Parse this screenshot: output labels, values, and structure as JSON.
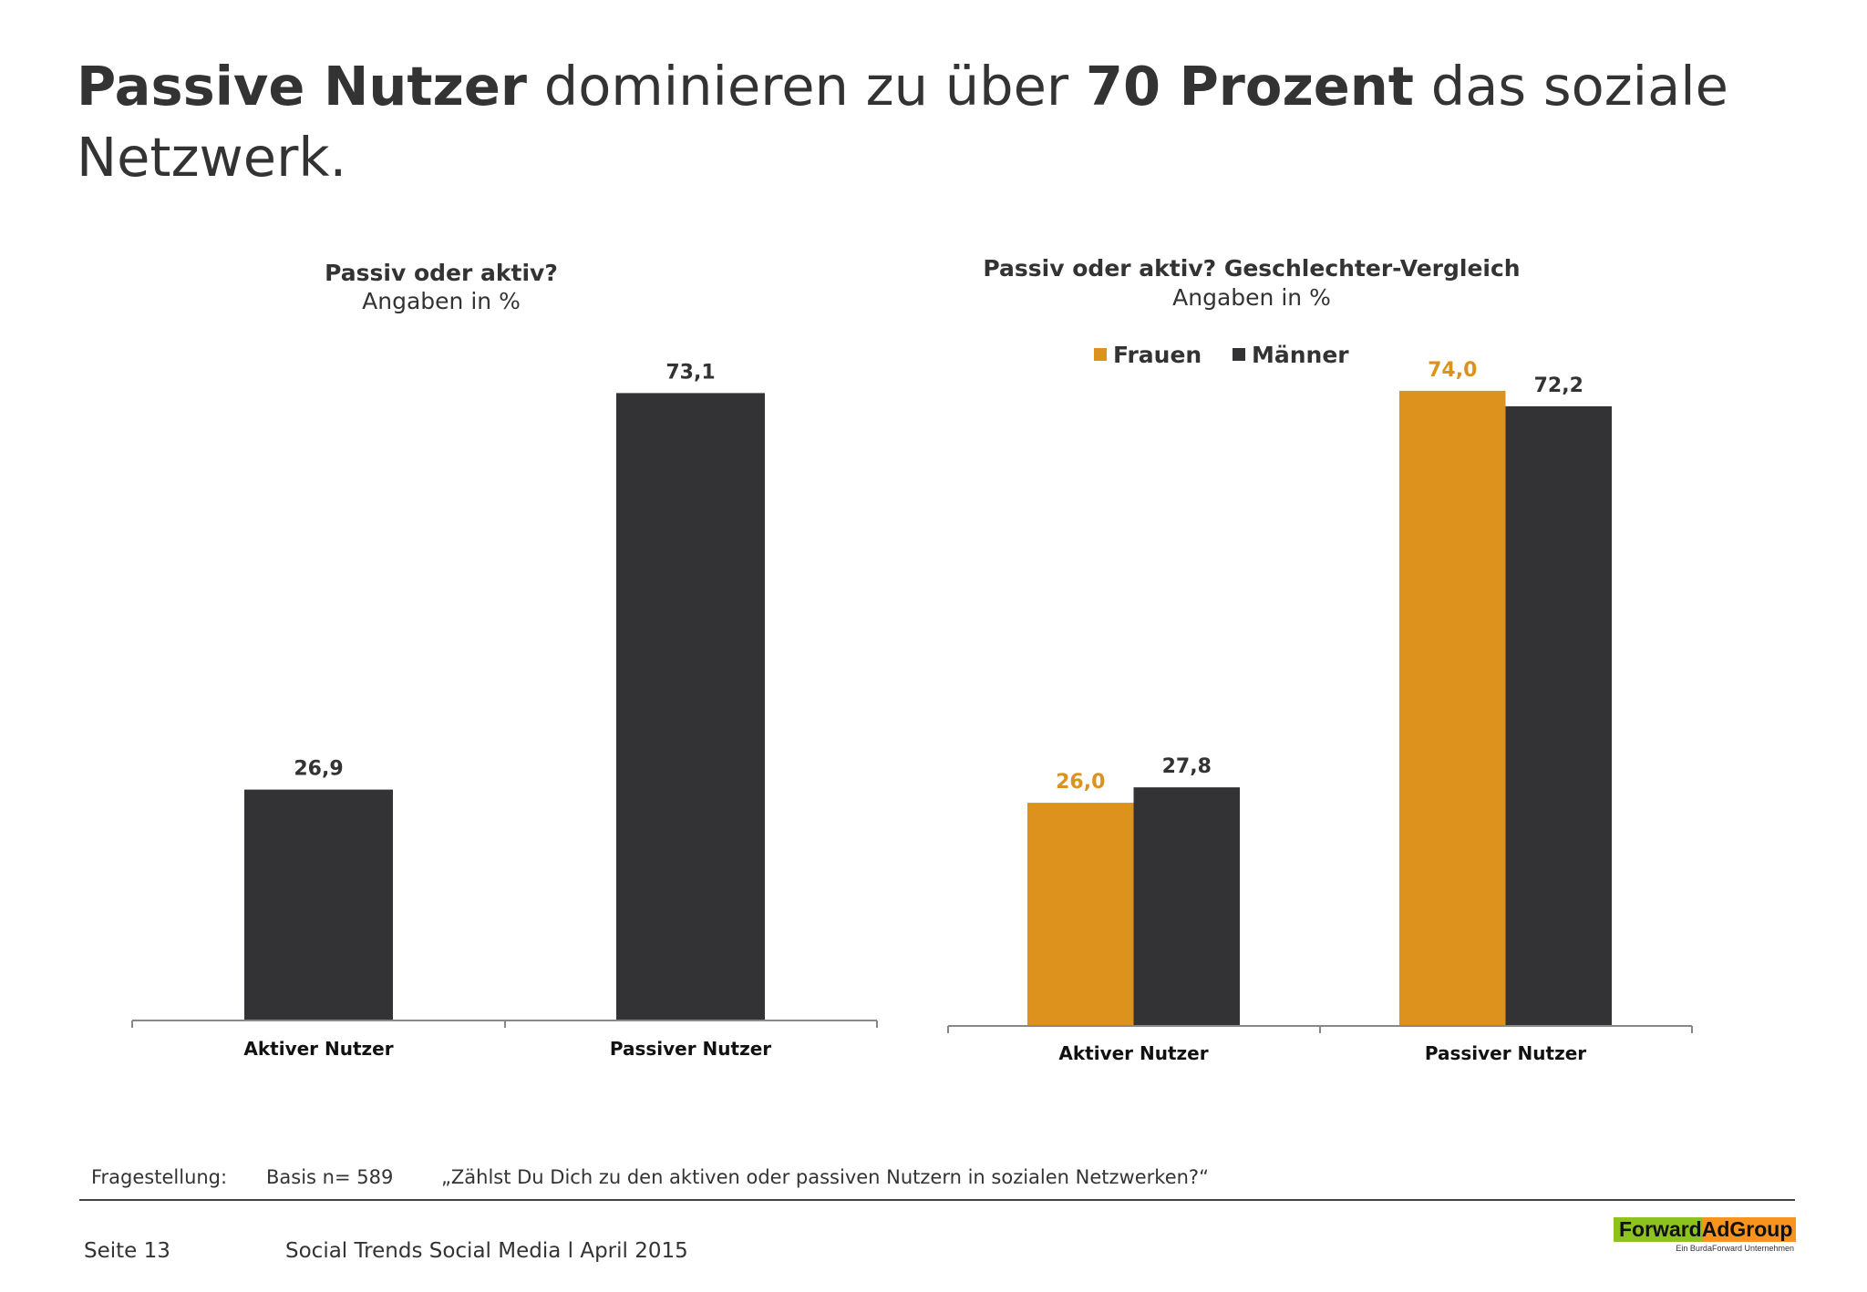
{
  "title": {
    "bold1": "Passive Nutzer",
    "normal1": " dominieren zu über ",
    "bold2": "70 Prozent",
    "normal2": " das soziale Netzwerk."
  },
  "colors": {
    "frauen": "#dc921c",
    "maenner": "#333335",
    "text": "#333333"
  },
  "chart_data": [
    {
      "type": "bar",
      "title": "Passiv oder aktiv?",
      "subtitle": "Angaben in %",
      "categories": [
        "Aktiver Nutzer",
        "Passiver Nutzer"
      ],
      "values": [
        26.9,
        73.1
      ],
      "labels": [
        "26,9",
        "73,1"
      ],
      "ylim": [
        0,
        75
      ],
      "grid": false
    },
    {
      "type": "bar",
      "title": "Passiv oder aktiv? Geschlechter-Vergleich",
      "subtitle": "Angaben in %",
      "categories": [
        "Aktiver Nutzer",
        "Passiver Nutzer"
      ],
      "legend_position": "top",
      "series": [
        {
          "name": "Frauen",
          "values": [
            26.0,
            74.0
          ],
          "labels": [
            "26,0",
            "74,0"
          ],
          "color": "#dc921c"
        },
        {
          "name": "Männer",
          "values": [
            27.8,
            72.2
          ],
          "labels": [
            "27,8",
            "72,2"
          ],
          "color": "#333335"
        }
      ],
      "ylim": [
        0,
        75
      ],
      "grid": false
    }
  ],
  "footer": {
    "fragestellung_label": "Fragestellung:",
    "basis": "Basis n= 589",
    "question": "„Zählst Du Dich zu den aktiven oder passiven Nutzern in sozialen Netzwerken?“",
    "page": "Seite 13",
    "report": "Social Trends Social Media l April 2015"
  },
  "logo": {
    "part1": "Forward",
    "part2": "AdGroup",
    "sub": "Ein BurdaForward Unternehmen"
  }
}
